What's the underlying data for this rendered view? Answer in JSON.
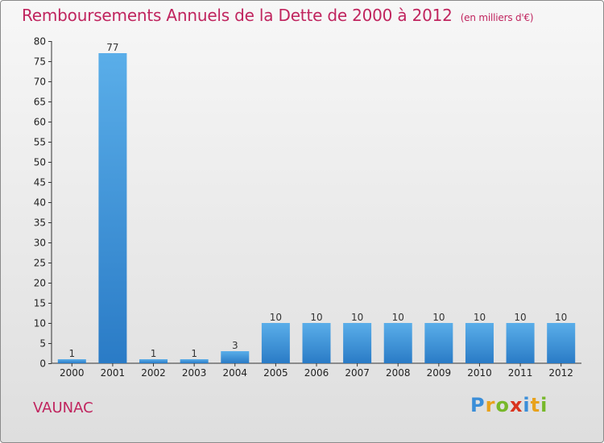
{
  "header": {
    "title": "Remboursements Annuels de la Dette de 2000 à 2012",
    "unit": "(en milliers d'€)"
  },
  "footer": {
    "commune": "VAUNAC",
    "logo_letters": [
      "P",
      "r",
      "o",
      "x",
      "i",
      "t",
      "i"
    ]
  },
  "colors": {
    "title": "#c0245e",
    "bar_top": "#5aaee9",
    "bar_bottom": "#2a7bc6"
  },
  "chart_data": {
    "type": "bar",
    "title": "Remboursements Annuels de la Dette de 2000 à 2012",
    "xlabel": "",
    "ylabel": "",
    "categories": [
      "2000",
      "2001",
      "2002",
      "2003",
      "2004",
      "2005",
      "2006",
      "2007",
      "2008",
      "2009",
      "2010",
      "2011",
      "2012"
    ],
    "values": [
      1,
      77,
      1,
      1,
      3,
      10,
      10,
      10,
      10,
      10,
      10,
      10,
      10
    ],
    "ylim": [
      0,
      80
    ],
    "yticks": [
      0,
      5,
      10,
      15,
      20,
      25,
      30,
      35,
      40,
      45,
      50,
      55,
      60,
      65,
      70,
      75,
      80
    ],
    "grid": false,
    "legend": "none"
  }
}
